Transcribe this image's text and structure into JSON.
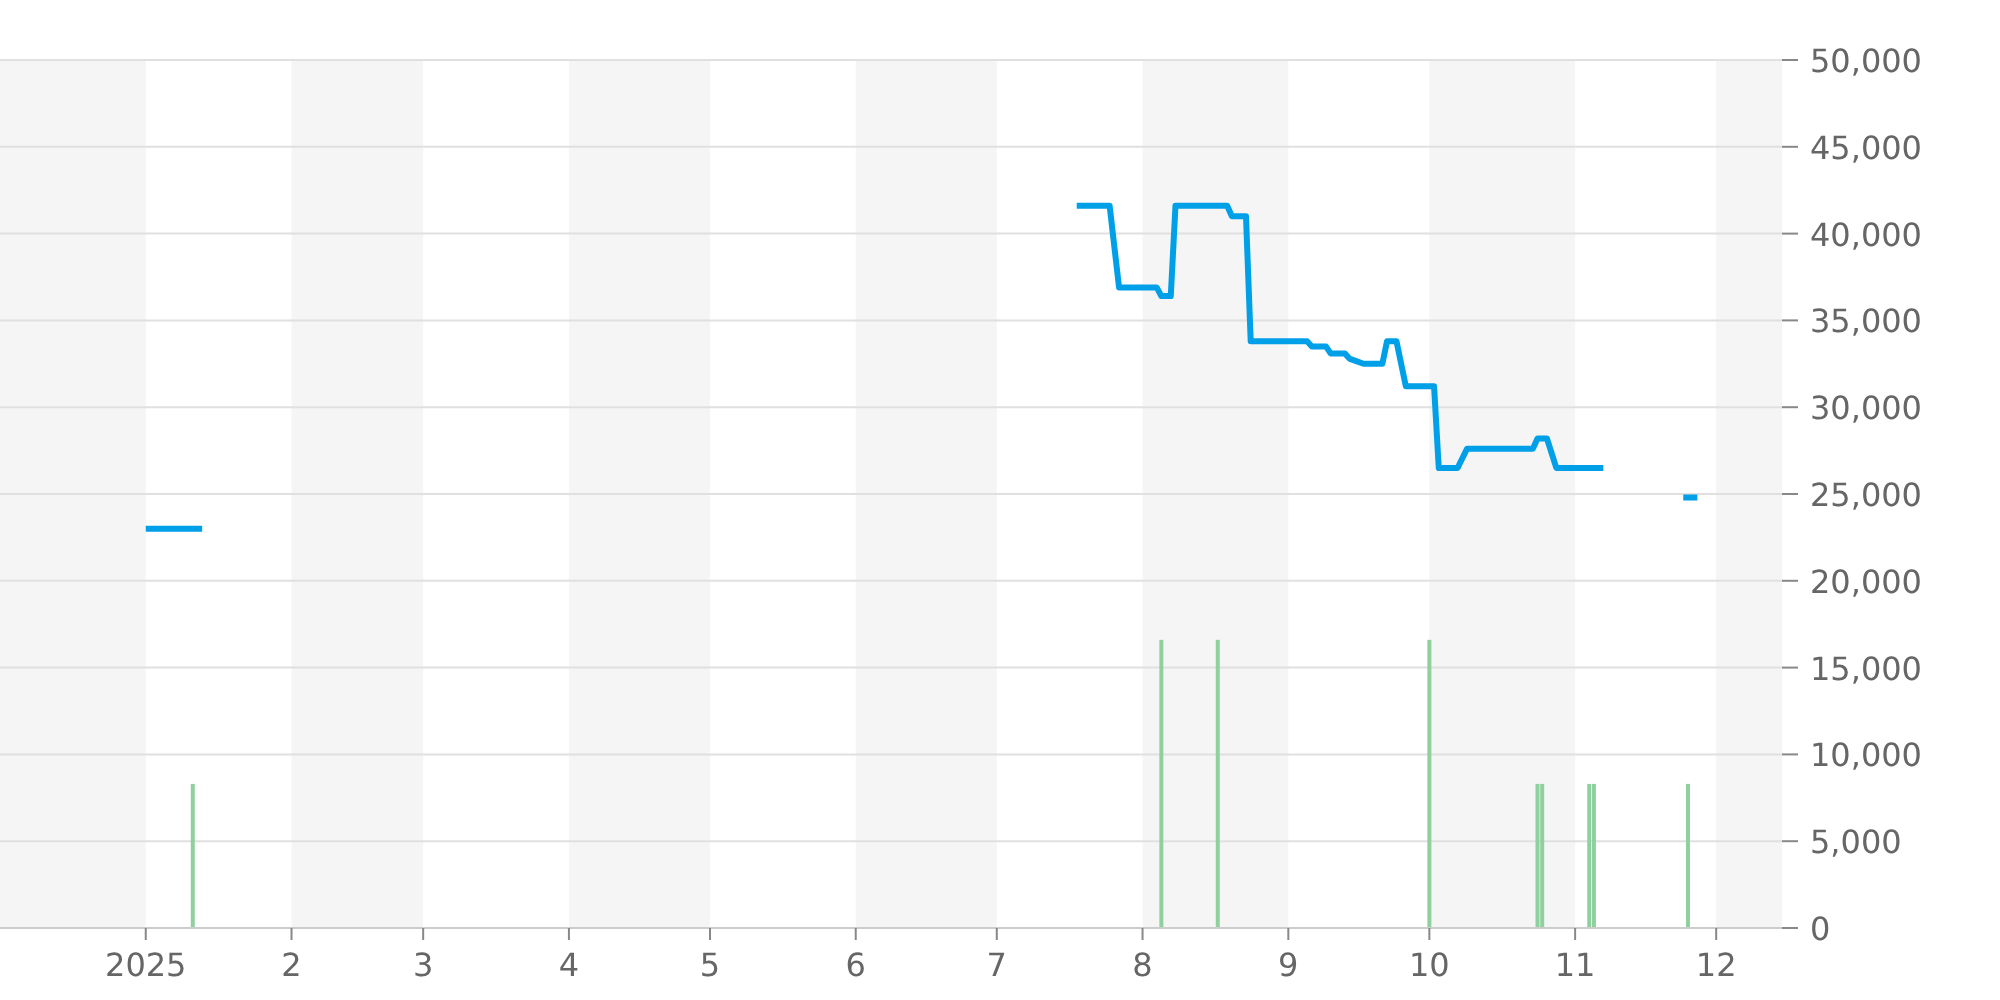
{
  "chart_data": {
    "type": "line",
    "xlim": [
      "2024-12-01",
      "2025-12-15"
    ],
    "xticks": [
      {
        "value": "2025-01-01",
        "label": "2025"
      },
      {
        "value": "2025-02-01",
        "label": "2"
      },
      {
        "value": "2025-03-01",
        "label": "3"
      },
      {
        "value": "2025-04-01",
        "label": "4"
      },
      {
        "value": "2025-05-01",
        "label": "5"
      },
      {
        "value": "2025-06-01",
        "label": "6"
      },
      {
        "value": "2025-07-01",
        "label": "7"
      },
      {
        "value": "2025-08-01",
        "label": "8"
      },
      {
        "value": "2025-09-01",
        "label": "9"
      },
      {
        "value": "2025-10-01",
        "label": "10"
      },
      {
        "value": "2025-11-01",
        "label": "11"
      },
      {
        "value": "2025-12-01",
        "label": "12"
      }
    ],
    "ylim": [
      0,
      50000
    ],
    "yticks": [
      0,
      {
        "value": 5000,
        "label": "5,000"
      },
      {
        "value": 10000,
        "label": "10,000"
      },
      {
        "value": 15000,
        "label": "15,000"
      },
      {
        "value": 20000,
        "label": "20,000"
      },
      {
        "value": 25000,
        "label": "25,000"
      },
      {
        "value": 30000,
        "label": "30,000"
      },
      {
        "value": 35000,
        "label": "35,000"
      },
      {
        "value": 40000,
        "label": "40,000"
      },
      {
        "value": 45000,
        "label": "45,000"
      },
      {
        "value": 50000,
        "label": "50,000"
      }
    ],
    "grid": "y",
    "bands": [
      {
        "axis": "x",
        "from": "2024-12-01",
        "to": "2025-01-01",
        "color": "#f5f5f5"
      },
      {
        "axis": "x",
        "from": "2025-02-01",
        "to": "2025-03-01",
        "color": "#f5f5f5"
      },
      {
        "axis": "x",
        "from": "2025-04-01",
        "to": "2025-05-01",
        "color": "#f5f5f5"
      },
      {
        "axis": "x",
        "from": "2025-06-01",
        "to": "2025-07-01",
        "color": "#f5f5f5"
      },
      {
        "axis": "x",
        "from": "2025-08-01",
        "to": "2025-09-01",
        "color": "#f5f5f5"
      },
      {
        "axis": "x",
        "from": "2025-10-01",
        "to": "2025-11-01",
        "color": "#f5f5f5"
      },
      {
        "axis": "x",
        "from": "2025-12-01",
        "to": "2025-12-15",
        "color": "#f5f5f5"
      }
    ],
    "series": [
      {
        "type": "bar",
        "color": "#8fd19e",
        "x": [
          "2025-01-11",
          "2025-08-05",
          "2025-08-17",
          "2025-10-01",
          "2025-10-24",
          "2025-10-25",
          "2025-11-04",
          "2025-11-05",
          "2025-11-25"
        ],
        "values": [
          8300,
          16600,
          16600,
          16600,
          8300,
          8300,
          8300,
          8300,
          8300
        ]
      },
      {
        "color": "#00a0e9",
        "x": [
          "2025-01-01",
          "2025-01-13",
          "2025-04-01",
          "2025-07-18",
          "2025-07-25",
          "2025-07-27",
          "2025-08-04",
          "2025-08-05",
          "2025-08-07",
          "2025-08-08",
          "2025-08-19",
          "2025-08-20",
          "2025-08-23",
          "2025-08-24",
          "2025-09-05",
          "2025-09-06",
          "2025-09-09",
          "2025-09-10",
          "2025-09-13",
          "2025-09-14",
          "2025-09-15",
          "2025-09-17",
          "2025-09-21",
          "2025-09-22",
          "2025-09-24",
          "2025-09-26",
          "2025-10-02",
          "2025-10-03",
          "2025-10-07",
          "2025-10-09",
          "2025-10-23",
          "2025-10-24",
          "2025-10-26",
          "2025-10-28",
          "2025-11-07",
          "2025-11-15",
          "2025-11-24",
          "2025-11-27"
        ],
        "values": [
          23000,
          23000,
          null,
          41600,
          41600,
          36900,
          36900,
          36400,
          36400,
          41600,
          41600,
          41000,
          41000,
          33800,
          33800,
          33500,
          33500,
          33100,
          33100,
          32800,
          32700,
          32500,
          32500,
          33800,
          33800,
          31200,
          31200,
          26500,
          26500,
          27600,
          27600,
          28200,
          28200,
          26500,
          26500,
          null,
          24800,
          24800
        ]
      }
    ]
  }
}
